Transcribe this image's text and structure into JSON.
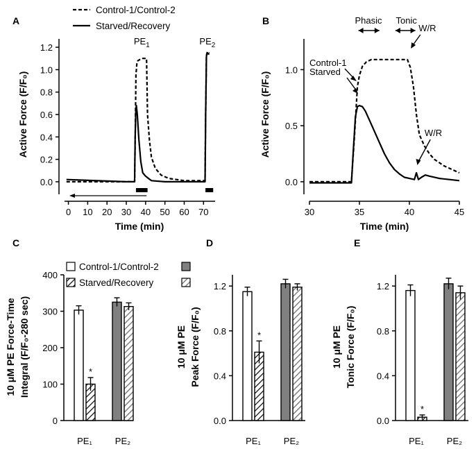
{
  "legend_top": {
    "control": "Control-1/Control-2",
    "starved": "Starved/Recovery"
  },
  "legend_bottom": {
    "control": "Control-1/Control-2",
    "starved": "Starved/Recovery"
  },
  "chart_data": [
    {
      "id": "A",
      "type": "line",
      "panel_letter": "A",
      "xlabel": "Time (min)",
      "ylabel": "Active Force (F/F₀)",
      "xlim": [
        -2,
        76
      ],
      "ylim": [
        -0.05,
        1.25
      ],
      "xticks": [
        0,
        10,
        20,
        30,
        40,
        50,
        60,
        70
      ],
      "yticks": [
        0.0,
        0.2,
        0.4,
        0.6,
        0.8,
        1.0,
        1.2
      ],
      "ytick_labels": [
        "0.0",
        "0.2",
        "0.4",
        "0.6",
        "0.8",
        "1.0",
        "1.2"
      ],
      "annotations": [
        {
          "text": "PE",
          "sub": "1",
          "x": 38,
          "y": 1.2
        },
        {
          "text": "PE",
          "sub": "2",
          "x": 72,
          "y": 1.2
        }
      ],
      "stim_bars": [
        [
          35,
          41
        ],
        [
          71,
          75
        ]
      ],
      "series": [
        {
          "name": "Control-1/Control-2",
          "style": "dashed",
          "x": [
            -1,
            34.3,
            34.7,
            35,
            35.5,
            36,
            37,
            38,
            39,
            40.5,
            41,
            42,
            43,
            45,
            48,
            52,
            56,
            60,
            64,
            68,
            70.8,
            71.1,
            71.5,
            72,
            72.5,
            73
          ],
          "y": [
            0.0,
            0.0,
            0.5,
            0.95,
            1.06,
            1.08,
            1.09,
            1.1,
            1.1,
            1.1,
            0.6,
            0.37,
            0.22,
            0.12,
            0.06,
            0.03,
            0.02,
            0.01,
            0.01,
            0.01,
            0.01,
            0.6,
            1.13,
            1.16,
            1.15,
            1.15
          ]
        },
        {
          "name": "Starved/Recovery",
          "style": "solid",
          "x": [
            -1,
            30,
            34.3,
            34.6,
            34.9,
            35.2,
            35.7,
            36.5,
            37.5,
            38.5,
            40,
            41.5,
            43,
            50,
            60,
            69,
            70.8,
            71.1,
            71.5,
            72,
            72.5,
            73
          ],
          "y": [
            0.02,
            0.0,
            0.0,
            0.4,
            0.62,
            0.68,
            0.6,
            0.38,
            0.18,
            0.08,
            0.05,
            0.03,
            0.01,
            0.0,
            0.0,
            0.0,
            0.0,
            0.6,
            1.12,
            1.15,
            1.14,
            1.14
          ]
        }
      ]
    },
    {
      "id": "B",
      "type": "line",
      "panel_letter": "B",
      "xlabel": "Time (min)",
      "ylabel": "Active Force (F/F₀)",
      "xlim": [
        30,
        45
      ],
      "ylim": [
        -0.05,
        1.25
      ],
      "xticks": [
        30,
        35,
        40,
        45
      ],
      "yticks": [
        0.0,
        0.5,
        1.0
      ],
      "ytick_labels": [
        "0.0",
        "0.5",
        "1.0"
      ],
      "annotations": [
        {
          "text": "Phasic",
          "x": 35.9,
          "y": 1.22
        },
        {
          "text": "Tonic",
          "x": 39.7,
          "y": 1.22
        },
        {
          "text": "W/R",
          "x": 41.3,
          "y": 1.13
        },
        {
          "text": "Control-1",
          "x": 31.5,
          "y": 1.03
        },
        {
          "text": "Starved",
          "x": 31.0,
          "y": 0.79
        },
        {
          "text": "W/R",
          "x": 41.4,
          "y": 0.41
        }
      ],
      "series": [
        {
          "name": "Control-1",
          "style": "dashed",
          "x": [
            30,
            33,
            34.2,
            34.5,
            34.8,
            35.0,
            35.3,
            35.7,
            36.2,
            37,
            38,
            39,
            39.8,
            40.1,
            40.4,
            40.7,
            41.0,
            41.5,
            42,
            42.5,
            43,
            43.5,
            44,
            44.5,
            45
          ],
          "y": [
            0.0,
            0.0,
            0.0,
            0.4,
            0.85,
            0.95,
            1.03,
            1.07,
            1.09,
            1.09,
            1.09,
            1.09,
            1.09,
            1.02,
            0.85,
            0.6,
            0.42,
            0.32,
            0.25,
            0.2,
            0.17,
            0.14,
            0.12,
            0.1,
            0.08
          ]
        },
        {
          "name": "Starved",
          "style": "solid",
          "x": [
            30,
            33,
            34.2,
            34.4,
            34.6,
            34.8,
            35.0,
            35.3,
            35.6,
            36,
            36.5,
            37,
            37.5,
            38,
            38.5,
            39,
            39.5,
            40,
            40.5,
            40.7,
            40.9,
            41.2,
            41.6,
            42,
            43,
            44,
            45
          ],
          "y": [
            -0.01,
            -0.01,
            -0.01,
            0.3,
            0.58,
            0.67,
            0.68,
            0.67,
            0.63,
            0.55,
            0.45,
            0.35,
            0.25,
            0.17,
            0.11,
            0.07,
            0.04,
            0.03,
            0.02,
            0.08,
            0.02,
            0.04,
            0.06,
            0.05,
            0.03,
            0.02,
            0.01
          ]
        }
      ]
    },
    {
      "id": "C",
      "type": "bar",
      "panel_letter": "C",
      "categories": [
        "PE₁",
        "PE₂"
      ],
      "ylabel_lines": [
        "10 μM  PE Force-Time",
        "Integral (F/F₀-280 sec)"
      ],
      "ylim": [
        0,
        400
      ],
      "yticks": [
        0,
        100,
        200,
        300,
        400
      ],
      "ytick_labels": [
        "0",
        "100",
        "200",
        "300",
        "400"
      ],
      "series": [
        {
          "name": "Control-1",
          "pattern": "white",
          "category": 0,
          "value": 303,
          "err": 12
        },
        {
          "name": "Starved",
          "pattern": "hatch",
          "category": 0,
          "value": 100,
          "err": 18
        },
        {
          "name": "Control-2",
          "pattern": "gray",
          "category": 1,
          "value": 325,
          "err": 12
        },
        {
          "name": "Recovery",
          "pattern": "gray-hatch",
          "category": 1,
          "value": 313,
          "err": 10
        }
      ],
      "significance": [
        {
          "bar": 1,
          "text": "*"
        }
      ]
    },
    {
      "id": "D",
      "type": "bar",
      "panel_letter": "D",
      "categories": [
        "PE₁",
        "PE₂"
      ],
      "ylabel_lines": [
        "10 μM  PE",
        "Peak Force (F/F₀)"
      ],
      "ylim": [
        0,
        1.3
      ],
      "yticks": [
        0.0,
        0.4,
        0.8,
        1.2
      ],
      "ytick_labels": [
        "0.0",
        "0.4",
        "0.8",
        "1.2"
      ],
      "series": [
        {
          "name": "Control-1",
          "pattern": "white",
          "category": 0,
          "value": 1.15,
          "err": 0.04
        },
        {
          "name": "Starved",
          "pattern": "hatch",
          "category": 0,
          "value": 0.61,
          "err": 0.1
        },
        {
          "name": "Control-2",
          "pattern": "gray",
          "category": 1,
          "value": 1.22,
          "err": 0.04
        },
        {
          "name": "Recovery",
          "pattern": "gray-hatch",
          "category": 1,
          "value": 1.19,
          "err": 0.03
        }
      ],
      "significance": [
        {
          "bar": 1,
          "text": "*"
        }
      ]
    },
    {
      "id": "E",
      "type": "bar",
      "panel_letter": "E",
      "categories": [
        "PE₁",
        "PE₂"
      ],
      "ylabel_lines": [
        "10 μM  PE",
        "Tonic Force (F/F₀)"
      ],
      "ylim": [
        0,
        1.3
      ],
      "yticks": [
        0.0,
        0.4,
        0.8,
        1.2
      ],
      "ytick_labels": [
        "0.0",
        "0.4",
        "0.8",
        "1.2"
      ],
      "series": [
        {
          "name": "Control-1",
          "pattern": "white",
          "category": 0,
          "value": 1.16,
          "err": 0.05
        },
        {
          "name": "Starved",
          "pattern": "hatch",
          "category": 0,
          "value": 0.03,
          "err": 0.02
        },
        {
          "name": "Control-2",
          "pattern": "gray",
          "category": 1,
          "value": 1.22,
          "err": 0.05
        },
        {
          "name": "Recovery",
          "pattern": "gray-hatch",
          "category": 1,
          "value": 1.14,
          "err": 0.06
        }
      ],
      "significance": [
        {
          "bar": 1,
          "text": "*"
        }
      ]
    }
  ]
}
